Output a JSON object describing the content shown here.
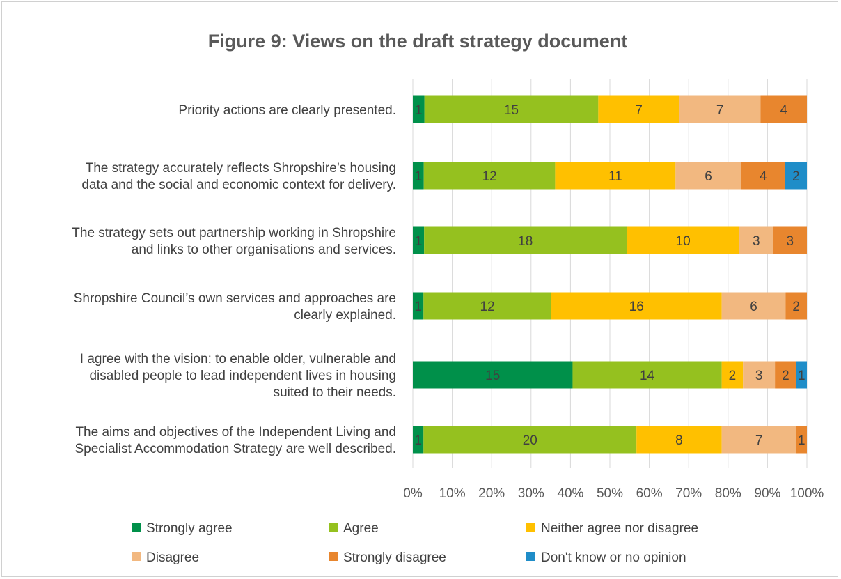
{
  "chart_data": {
    "type": "bar",
    "orientation": "horizontal",
    "stacked": "percent",
    "title": "Figure 9: Views on the draft strategy document",
    "categories": [
      [
        "Priority actions are clearly presented."
      ],
      [
        "The strategy accurately reflects Shropshire’s housing",
        "data and the social and economic context for delivery."
      ],
      [
        "The strategy sets out partnership working in Shropshire",
        "and links to other organisations and services."
      ],
      [
        "Shropshire Council’s own services and approaches are",
        "clearly explained."
      ],
      [
        "I agree with the vision: to enable older, vulnerable and",
        "disabled people to lead independent lives in housing",
        "suited to their needs."
      ],
      [
        "The aims and objectives of the Independent Living and",
        "Specialist Accommodation Strategy are well described."
      ]
    ],
    "series": [
      {
        "name": "Strongly agree",
        "color": "#00904a",
        "values": [
          1,
          1,
          1,
          1,
          15,
          1
        ]
      },
      {
        "name": "Agree",
        "color": "#95c11f",
        "values": [
          15,
          12,
          18,
          12,
          14,
          20
        ]
      },
      {
        "name": "Neither agree nor disagree",
        "color": "#ffc000",
        "values": [
          7,
          11,
          10,
          16,
          2,
          8
        ]
      },
      {
        "name": "Disagree",
        "color": "#f2b880",
        "values": [
          7,
          6,
          3,
          6,
          3,
          7
        ]
      },
      {
        "name": "Strongly disagree",
        "color": "#e8862e",
        "values": [
          4,
          4,
          3,
          2,
          2,
          1
        ]
      },
      {
        "name": "Don't know or no opinion",
        "color": "#1f8dc8",
        "values": [
          0,
          2,
          0,
          0,
          1,
          0
        ]
      }
    ],
    "x_ticks": [
      "0%",
      "10%",
      "20%",
      "30%",
      "40%",
      "50%",
      "60%",
      "70%",
      "80%",
      "90%",
      "100%"
    ],
    "xlim": [
      0,
      100
    ],
    "grid": "vertical",
    "legend_position": "bottom"
  }
}
